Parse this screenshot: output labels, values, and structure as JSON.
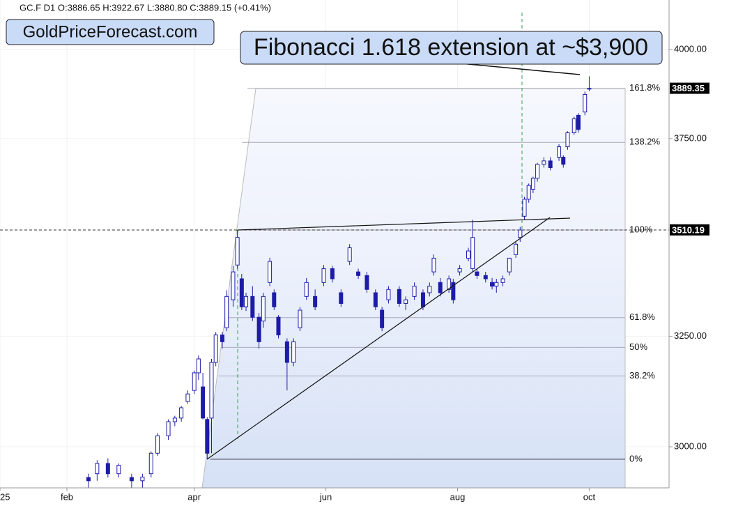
{
  "chart_data": {
    "type": "candlestick",
    "header": "GC.F  D1  O:3886.65  H:3922.67  L:3880.80  C:3889.15  (+0.41%)",
    "brand": "GoldPriceForecast.com",
    "annotation": "Fibonacci 1.618 extension at ~$3,900",
    "log_scale": true,
    "grid": true,
    "up_color": "#ffffff",
    "down_color": "#1c1ca8",
    "wick_color": "#1c1ca8",
    "xlim": [
      0,
      310
    ],
    "ylim": [
      2912,
      4146
    ],
    "xticks": [
      {
        "value": 0,
        "label": "2025"
      },
      {
        "value": 31,
        "label": "feb"
      },
      {
        "value": 90,
        "label": "apr"
      },
      {
        "value": 151,
        "label": "jun"
      },
      {
        "value": 212,
        "label": "aug"
      },
      {
        "value": 273,
        "label": "oct"
      }
    ],
    "yticks": [
      {
        "value": 3000,
        "label": "3000.00"
      },
      {
        "value": 3250,
        "label": "3250.00"
      },
      {
        "value": 3750,
        "label": "3750.00"
      },
      {
        "value": 4000,
        "label": "4000.00"
      }
    ],
    "fib_levels": [
      {
        "label": "161.8%",
        "value": 3889
      },
      {
        "label": "138.2%",
        "value": 3740
      },
      {
        "label": "100%",
        "value": 3510
      },
      {
        "label": "61.8%",
        "value": 3294
      },
      {
        "label": "50%",
        "value": 3224
      },
      {
        "label": "38.2%",
        "value": 3158
      },
      {
        "label": "0%",
        "value": 2973
      }
    ],
    "price_tags": [
      {
        "value": 3889.35,
        "label": "3889.35"
      },
      {
        "value": 3510.19,
        "label": "3510.19"
      }
    ],
    "x": [
      41,
      45,
      50,
      55,
      61,
      66,
      70,
      73,
      78,
      81,
      84,
      87,
      90,
      92,
      94,
      96,
      98,
      100,
      103,
      105,
      108,
      110,
      112,
      114,
      117,
      120,
      122,
      125,
      127,
      129,
      133,
      136,
      139,
      142,
      146,
      150,
      154,
      158,
      162,
      166,
      170,
      174,
      177,
      180,
      185,
      188,
      192,
      196,
      199,
      201,
      204,
      208,
      210,
      213,
      217,
      219,
      221,
      225,
      228,
      230,
      233,
      236,
      239,
      241,
      243,
      245,
      247,
      249,
      252,
      255,
      259,
      261,
      263,
      266,
      268,
      271,
      273
    ],
    "open": [
      2934,
      2942,
      2964,
      2942,
      2934,
      2927,
      2942,
      2986,
      3024,
      3055,
      3063,
      3100,
      3125,
      3165,
      3133,
      3060,
      3063,
      3189,
      3253,
      3270,
      3337,
      3422,
      3388,
      3320,
      3345,
      3295,
      3286,
      3379,
      3354,
      3295,
      3237,
      3189,
      3270,
      3345,
      3345,
      3379,
      3413,
      3354,
      3431,
      3405,
      3396,
      3354,
      3312,
      3337,
      3362,
      3328,
      3345,
      3354,
      3354,
      3405,
      3379,
      3362,
      3379,
      3405,
      3439,
      3413,
      3405,
      3396,
      3379,
      3370,
      3379,
      3405,
      3448,
      3491,
      3545,
      3589,
      3615,
      3644,
      3681,
      3690,
      3700,
      3700,
      3728,
      3766,
      3814,
      3823,
      3887
    ],
    "high": [
      2942,
      2971,
      2975,
      2964,
      2942,
      2942,
      2990,
      3030,
      3060,
      3068,
      3090,
      3125,
      3170,
      3205,
      3165,
      3065,
      3197,
      3260,
      3260,
      3360,
      3420,
      3510,
      3400,
      3354,
      3370,
      3305,
      3354,
      3440,
      3362,
      3300,
      3245,
      3245,
      3320,
      3390,
      3362,
      3422,
      3420,
      3362,
      3474,
      3413,
      3405,
      3362,
      3320,
      3370,
      3370,
      3345,
      3379,
      3362,
      3379,
      3448,
      3390,
      3396,
      3388,
      3422,
      3465,
      3536,
      3413,
      3405,
      3390,
      3388,
      3396,
      3440,
      3480,
      3518,
      3595,
      3630,
      3648,
      3685,
      3700,
      3700,
      3735,
      3705,
      3770,
      3810,
      3820,
      3880,
      3923
    ],
    "low": [
      2912,
      2927,
      2934,
      2934,
      2912,
      2912,
      2934,
      2980,
      3015,
      3045,
      3055,
      3095,
      3117,
      3149,
      3060,
      2973,
      2986,
      3180,
      3221,
      3262,
      3320,
      3413,
      3312,
      3310,
      3286,
      3221,
      3270,
      3370,
      3312,
      3245,
      3125,
      3180,
      3262,
      3337,
      3312,
      3370,
      3379,
      3320,
      3422,
      3388,
      3354,
      3312,
      3262,
      3328,
      3320,
      3312,
      3337,
      3312,
      3345,
      3396,
      3345,
      3354,
      3328,
      3396,
      3431,
      3405,
      3388,
      3379,
      3362,
      3354,
      3370,
      3396,
      3440,
      3480,
      3536,
      3580,
      3605,
      3635,
      3672,
      3665,
      3690,
      3672,
      3720,
      3760,
      3766,
      3814,
      3881
    ],
    "close": [
      2927,
      2964,
      2942,
      2960,
      2927,
      2935,
      2986,
      3024,
      3055,
      3063,
      3086,
      3117,
      3165,
      3197,
      3063,
      2986,
      3189,
      3253,
      3237,
      3345,
      3405,
      3491,
      3320,
      3345,
      3295,
      3237,
      3345,
      3431,
      3320,
      3253,
      3189,
      3237,
      3312,
      3379,
      3320,
      3413,
      3388,
      3328,
      3465,
      3396,
      3362,
      3320,
      3270,
      3362,
      3328,
      3337,
      3370,
      3320,
      3370,
      3439,
      3354,
      3388,
      3337,
      3413,
      3457,
      3491,
      3396,
      3388,
      3370,
      3379,
      3388,
      3439,
      3474,
      3510,
      3589,
      3625,
      3644,
      3681,
      3690,
      3672,
      3728,
      3681,
      3766,
      3804,
      3775,
      3872,
      3889
    ]
  }
}
